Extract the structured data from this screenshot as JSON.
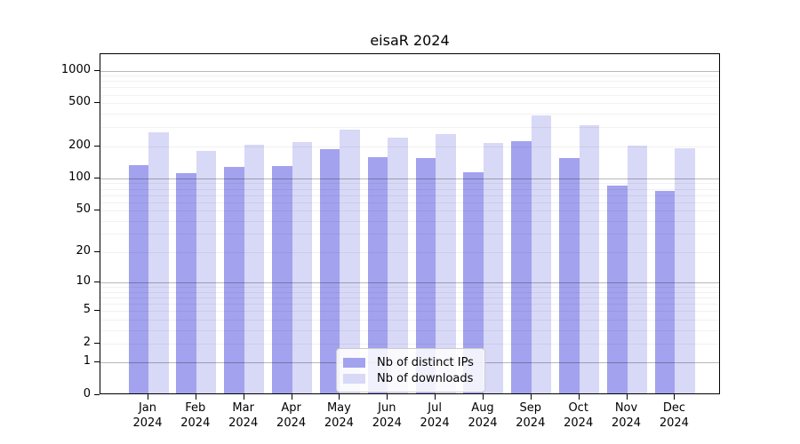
{
  "chart_data": {
    "type": "bar",
    "title": "eisaR 2024",
    "categories": [
      "Jan",
      "Feb",
      "Mar",
      "Apr",
      "May",
      "Jun",
      "Jul",
      "Aug",
      "Sep",
      "Oct",
      "Nov",
      "Dec"
    ],
    "x_year_label": "2024",
    "series": [
      {
        "name": "Nb of distinct IPs",
        "color": "#a2a2ee",
        "values": [
          128,
          107,
          124,
          125,
          179,
          153,
          148,
          109,
          213,
          150,
          83,
          73
        ]
      },
      {
        "name": "Nb of downloads",
        "color": "#d8d8f7",
        "values": [
          257,
          173,
          197,
          210,
          273,
          230,
          249,
          206,
          370,
          303,
          193,
          182
        ]
      }
    ],
    "y_scale": "log10(1+x)",
    "y_ticks": [
      0,
      1,
      2,
      5,
      10,
      20,
      50,
      100,
      200,
      500,
      1000
    ],
    "y_tick_labels": [
      "0",
      "1",
      "2",
      "5",
      "10",
      "20",
      "50",
      "100",
      "200",
      "500",
      "1000"
    ],
    "y_major_gridlines": [
      1,
      10,
      100,
      1000
    ],
    "ylim": [
      0,
      1420
    ],
    "grid": "on",
    "legend_position": "bottom-center",
    "colors": {
      "bar_distinct_ips": "#a2a2ee",
      "bar_downloads": "#d8d8f7",
      "axis": "#000000",
      "major_grid": "#b9b9b9",
      "minor_grid": "#f0f0f0",
      "legend_border": "#cccccc"
    }
  }
}
